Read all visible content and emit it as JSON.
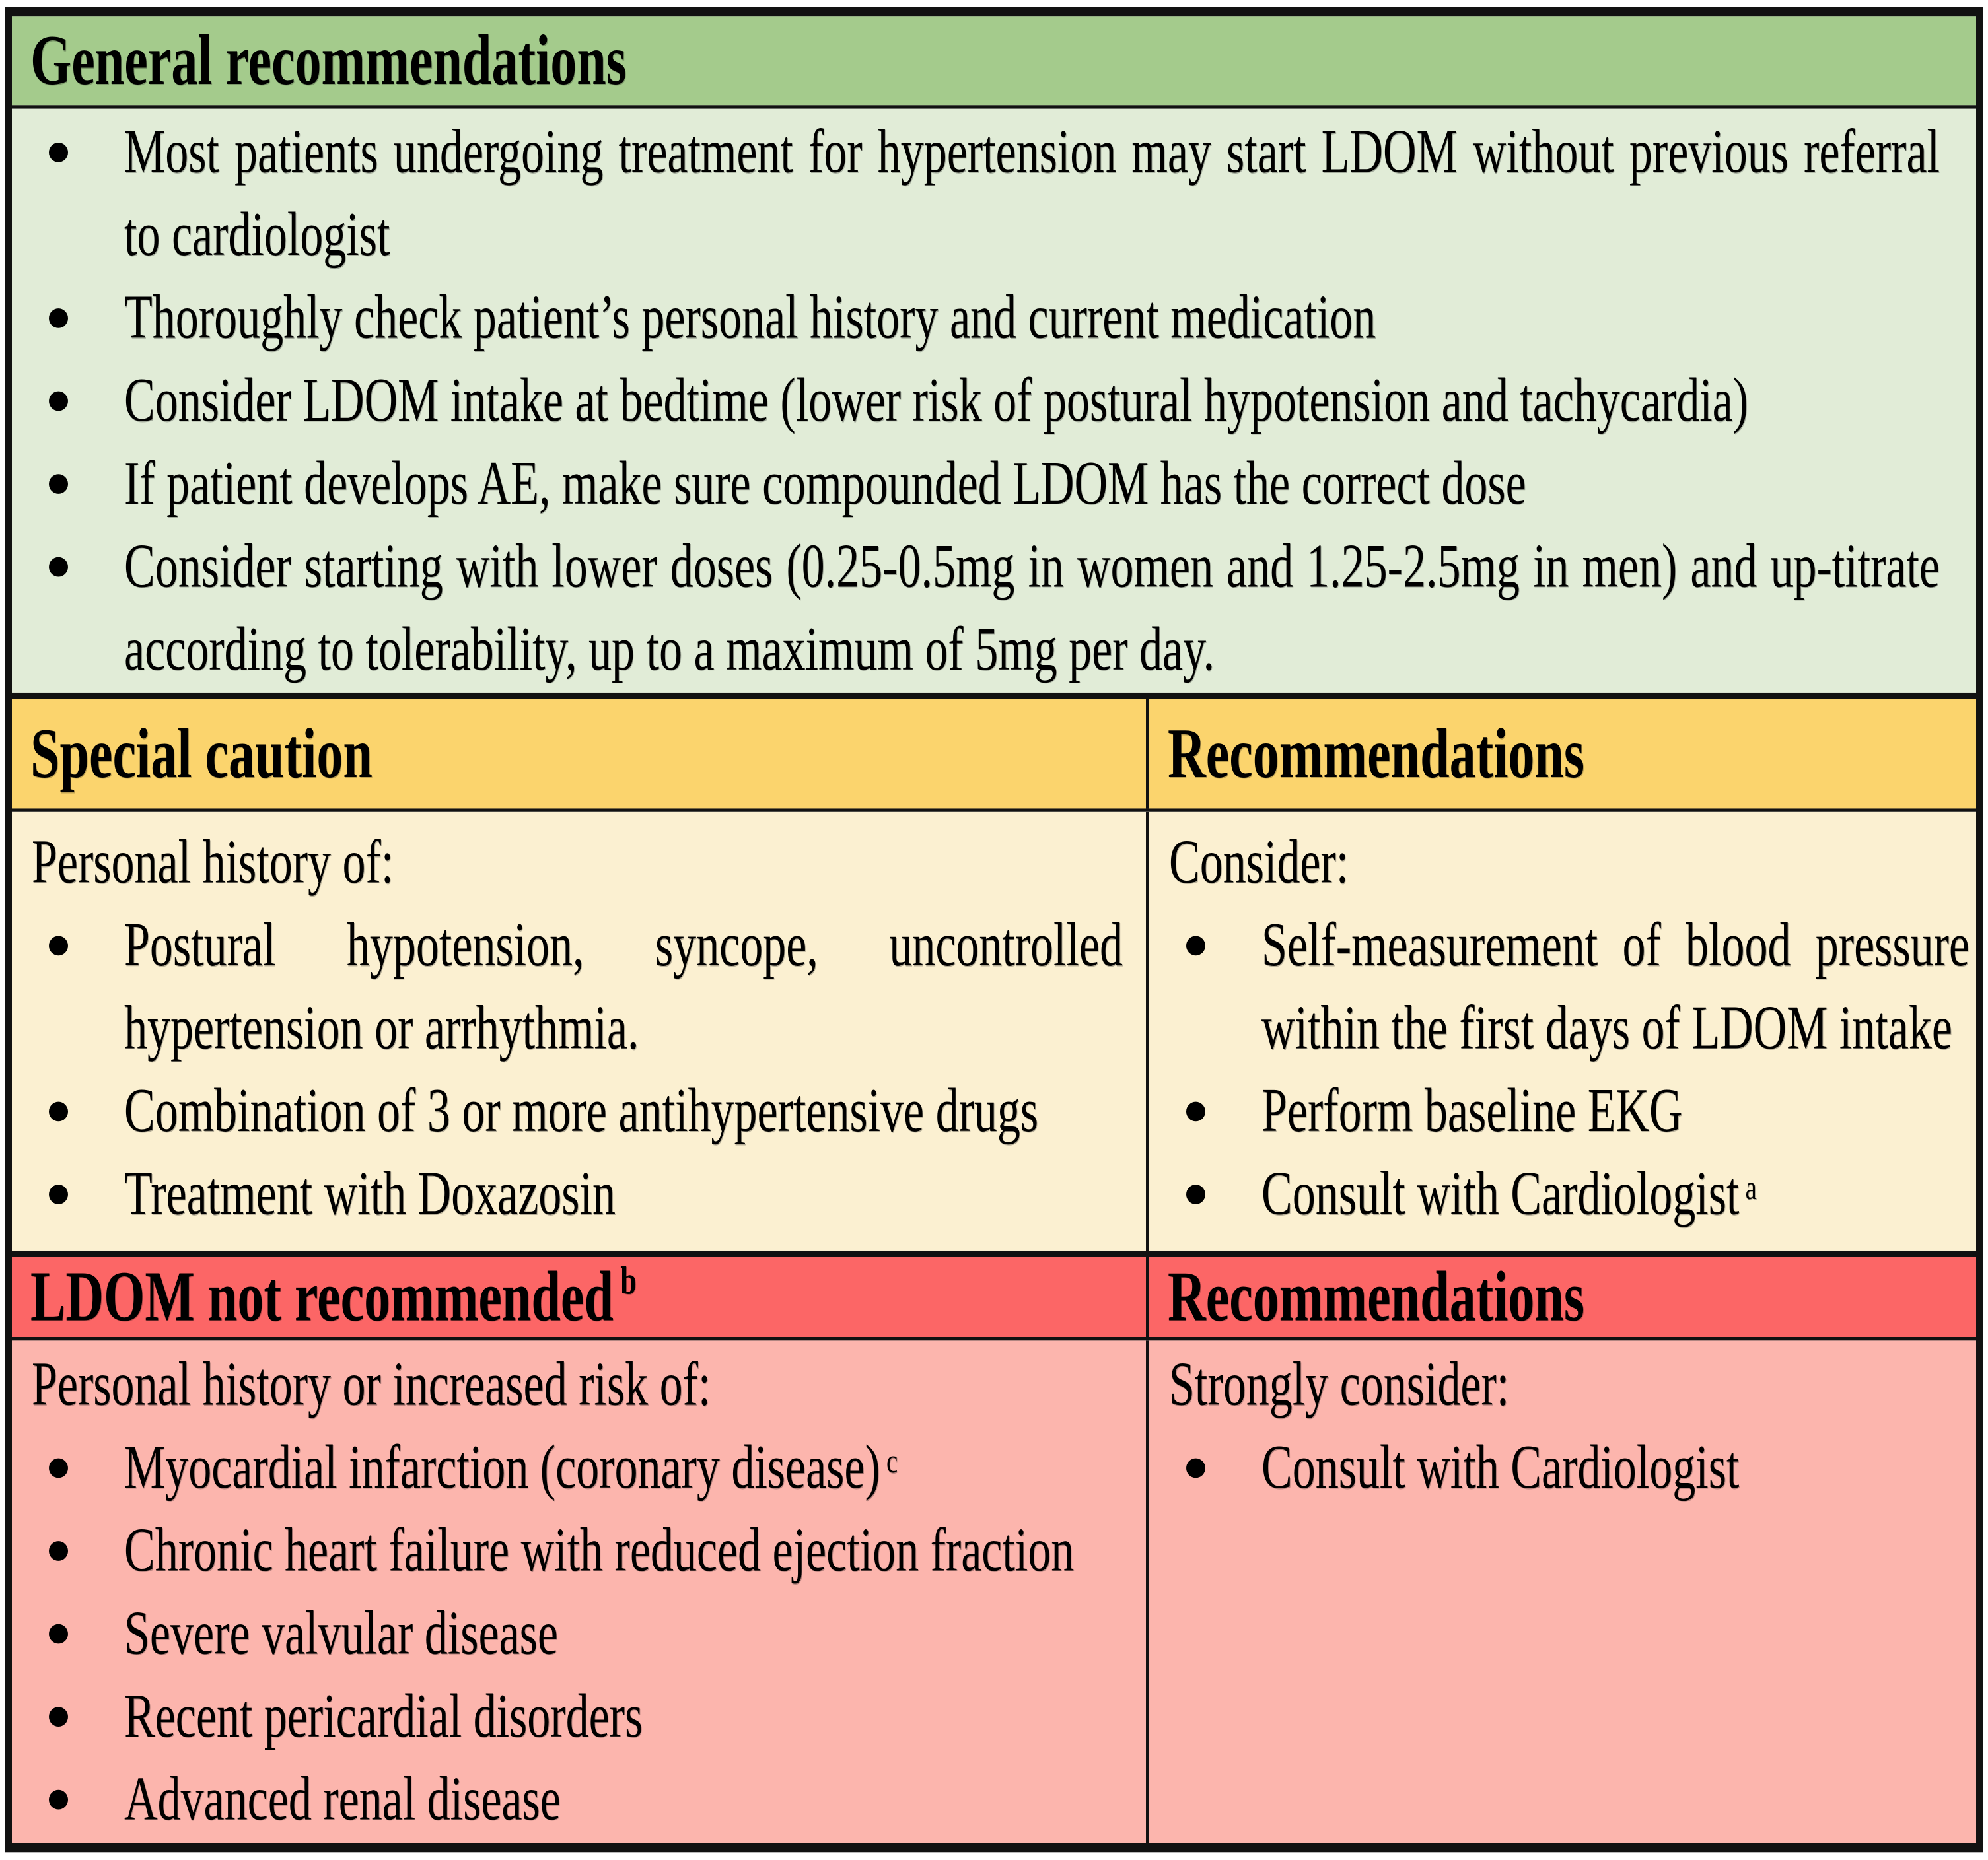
{
  "table": {
    "general": {
      "header": "General recommendations",
      "bullets": [
        {
          "text": "Most patients undergoing treatment for hypertension may start LDOM without previous referral to cardiologist"
        },
        {
          "text": "Thoroughly check patient’s personal history and current medication"
        },
        {
          "text": "Consider LDOM intake at bedtime (lower risk of postural hypotension and tachycardia)"
        },
        {
          "text": "If patient develops AE, make sure compounded LDOM has the correct dose"
        },
        {
          "text": "Consider starting with lower doses (0.25-0.5mg in women and 1.25-2.5mg in men) and up-titrate according to tolerability, up to a maximum of 5mg per day."
        }
      ]
    },
    "caution": {
      "left_header": "Special caution",
      "right_header": "Recommendations",
      "left_intro": "Personal history of:",
      "left_bullets": [
        {
          "text": "Postural hypotension, syncope, uncontrolled hypertension or arrhythmia."
        },
        {
          "text": "Combination of 3 or more antihypertensive drugs"
        },
        {
          "text": "Treatment with Doxazosin"
        }
      ],
      "right_intro": "Consider:",
      "right_bullets": [
        {
          "text": "Self-measurement of blood pressure within the first days of LDOM intake"
        },
        {
          "text": "Perform baseline EKG"
        },
        {
          "text": "Consult with Cardiologist",
          "sup": "a"
        }
      ]
    },
    "not_recommended": {
      "left_header": "LDOM not recommended",
      "left_header_sup": "b",
      "right_header": "Recommendations",
      "left_intro": "Personal history or increased risk of:",
      "left_bullets": [
        {
          "text": "Myocardial infarction (coronary disease)",
          "sup": "c"
        },
        {
          "text": "Chronic heart failure with reduced ejection fraction"
        },
        {
          "text": "Severe valvular disease"
        },
        {
          "text": "Recent pericardial disorders"
        },
        {
          "text": "Advanced renal disease"
        }
      ],
      "right_intro": "Strongly consider:",
      "right_bullets": [
        {
          "text": "Consult with Cardiologist"
        }
      ]
    },
    "bullet_icon": "filled-circle",
    "colors": {
      "green_header": "#a4cb8c",
      "green_body": "#e1ecd7",
      "yellow_header": "#fbd46d",
      "yellow_body": "#fbf0d1",
      "red_header": "#fc6666",
      "red_body": "#fcb5ad",
      "border": "#111111",
      "text": "#000000"
    }
  }
}
